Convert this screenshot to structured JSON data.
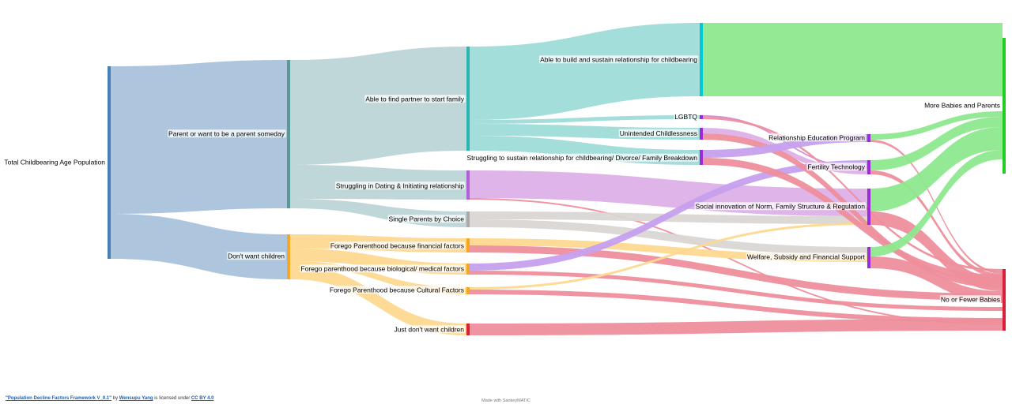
{
  "nodes": [
    {
      "id": "total",
      "label": "Total Childbearing Age Population",
      "color": "#4a7fb5"
    },
    {
      "id": "parent",
      "label": "Parent or want to be a parent someday",
      "color": "#5a9a96"
    },
    {
      "id": "dont",
      "label": "Don't want children",
      "color": "#f5a623"
    },
    {
      "id": "partner",
      "label": "Able to find partner to start family",
      "color": "#2ab5b0"
    },
    {
      "id": "dating",
      "label": "Struggling in Dating & Initiating relationship",
      "color": "#b05fd8"
    },
    {
      "id": "single",
      "label": "Single Parents by Choice",
      "color": "#aaaaaa"
    },
    {
      "id": "financial",
      "label": "Forego Parenthood because financial factors",
      "color": "#f5a623"
    },
    {
      "id": "bio",
      "label": "Forego parenthood because biological/ medical factors",
      "color": "#f5a623"
    },
    {
      "id": "cultural",
      "label": "Forego Parenthood because Cultural Factors",
      "color": "#f5a623"
    },
    {
      "id": "justdont",
      "label": "Just don't want children",
      "color": "#d8202f"
    },
    {
      "id": "sustain",
      "label": "Able to build and sustain relationship for childbearing",
      "color": "#00c8d8"
    },
    {
      "id": "lgbtq",
      "label": "LGBTQ",
      "color": "#9b2bd8"
    },
    {
      "id": "unintended",
      "label": "Unintended Childlessness",
      "color": "#9b2bd8"
    },
    {
      "id": "struggle",
      "label": "Struggling to sustain relationship for childbearing/ Divorce/ Family Breakdown",
      "color": "#9b2bd8"
    },
    {
      "id": "relEdu",
      "label": "Relationship Education Program",
      "color": "#9b2bd8"
    },
    {
      "id": "fertility",
      "label": "Fertility Technology",
      "color": "#9b2bd8"
    },
    {
      "id": "social",
      "label": "Social innovation of Norm, Family Structure & Regulation",
      "color": "#9b2bd8"
    },
    {
      "id": "welfare",
      "label": "Welfare, Subsidy and Financial Support",
      "color": "#9b2bd8"
    },
    {
      "id": "more",
      "label": "More Babies and Parents",
      "color": "#22cc22"
    },
    {
      "id": "fewer",
      "label": "No or Fewer Babies",
      "color": "#d8203a"
    }
  ],
  "links": [
    {
      "from": "total",
      "to": "parent",
      "color": "#a9c3dc"
    },
    {
      "from": "total",
      "to": "dont",
      "color": "#a9c3dc"
    },
    {
      "from": "parent",
      "to": "partner",
      "color": "#bcd5d6"
    },
    {
      "from": "parent",
      "to": "dating",
      "color": "#bcd5d6"
    },
    {
      "from": "parent",
      "to": "single",
      "color": "#bcd5d6"
    },
    {
      "from": "dont",
      "to": "financial",
      "color": "#fed891"
    },
    {
      "from": "dont",
      "to": "bio",
      "color": "#fed891"
    },
    {
      "from": "dont",
      "to": "cultural",
      "color": "#fed891"
    },
    {
      "from": "dont",
      "to": "justdont",
      "color": "#fed891"
    },
    {
      "from": "partner",
      "to": "sustain",
      "color": "#9edcd9"
    },
    {
      "from": "partner",
      "to": "lgbtq",
      "color": "#9edcd9"
    },
    {
      "from": "partner",
      "to": "unintended",
      "color": "#9edcd9"
    },
    {
      "from": "partner",
      "to": "struggle",
      "color": "#9edcd9"
    },
    {
      "from": "sustain",
      "to": "more",
      "color": "#8ee88e"
    },
    {
      "from": "dating",
      "to": "social",
      "color": "#dcb0e8"
    },
    {
      "from": "dating",
      "to": "fewer",
      "color": "#ee8e9c"
    },
    {
      "from": "single",
      "to": "social",
      "color": "#dad6d4"
    },
    {
      "from": "single",
      "to": "welfare",
      "color": "#dad6d4"
    },
    {
      "from": "financial",
      "to": "welfare",
      "color": "#fed891"
    },
    {
      "from": "financial",
      "to": "fewer",
      "color": "#ee8e9c"
    },
    {
      "from": "bio",
      "to": "fertility",
      "color": "#c6a0ee"
    },
    {
      "from": "bio",
      "to": "fewer",
      "color": "#ee8e9c"
    },
    {
      "from": "cultural",
      "to": "social",
      "color": "#fed891"
    },
    {
      "from": "cultural",
      "to": "fewer",
      "color": "#ee8e9c"
    },
    {
      "from": "justdont",
      "to": "fewer",
      "color": "#ee8e9c"
    },
    {
      "from": "lgbtq",
      "to": "fertility",
      "color": "#d38ad8"
    },
    {
      "from": "lgbtq",
      "to": "fewer",
      "color": "#ee8e9c"
    },
    {
      "from": "unintended",
      "to": "fertility",
      "color": "#dcb0e8"
    },
    {
      "from": "unintended",
      "to": "fewer",
      "color": "#ee8e9c"
    },
    {
      "from": "struggle",
      "to": "relEdu",
      "color": "#c6a0ee"
    },
    {
      "from": "struggle",
      "to": "fewer",
      "color": "#ee8e9c"
    },
    {
      "from": "relEdu",
      "to": "more",
      "color": "#8ee88e"
    },
    {
      "from": "relEdu",
      "to": "fewer",
      "color": "#ee8e9c"
    },
    {
      "from": "fertility",
      "to": "more",
      "color": "#8ee88e"
    },
    {
      "from": "fertility",
      "to": "fewer",
      "color": "#ee8e9c"
    },
    {
      "from": "social",
      "to": "more",
      "color": "#8ee88e"
    },
    {
      "from": "social",
      "to": "fewer",
      "color": "#ee8e9c"
    },
    {
      "from": "welfare",
      "to": "more",
      "color": "#8ee88e"
    },
    {
      "from": "welfare",
      "to": "fewer",
      "color": "#ee8e9c"
    }
  ],
  "footer": {
    "work_title": "\"Population Decline Factors Framework V_0.1\"",
    "by": "by",
    "author": "Wensupu Yang",
    "licensed": "is licensed under",
    "license": "CC BY 4.0",
    "made_with": "Made with SankeyMATIC"
  }
}
